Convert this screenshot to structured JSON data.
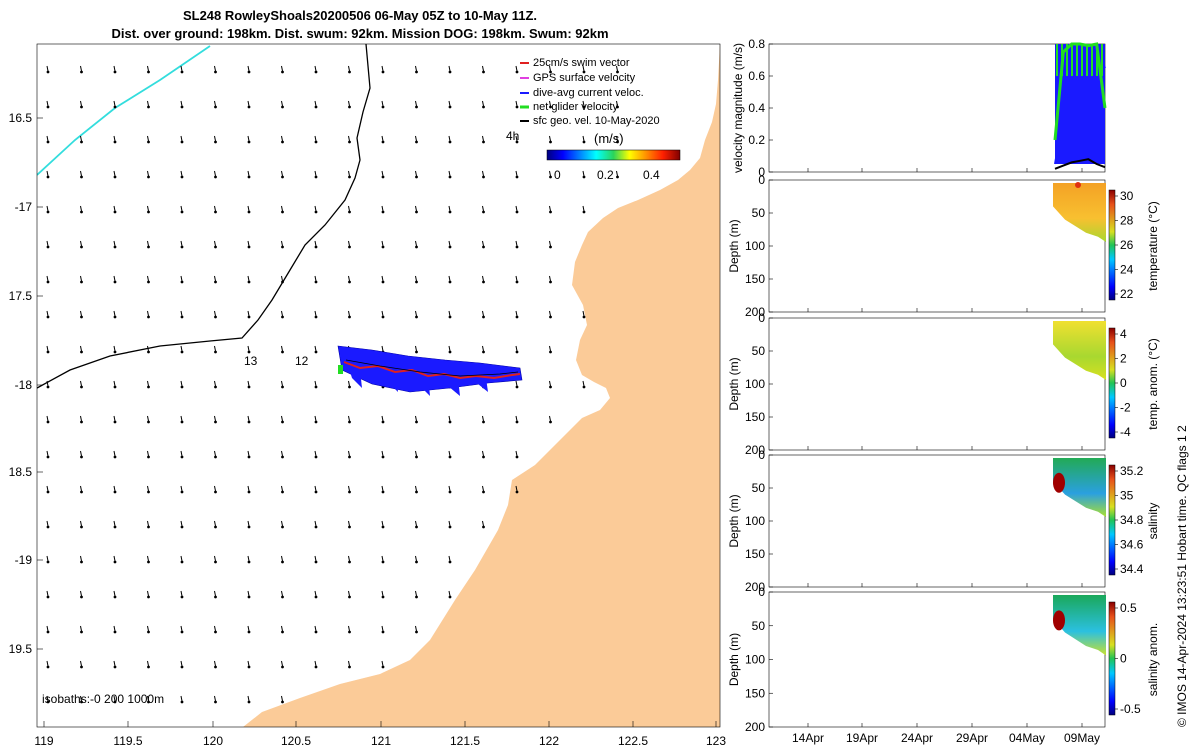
{
  "title": {
    "line1": "SL248 RowleyShoals20200506 06-May 05Z to 10-May 11Z.",
    "line2": "Dist. over ground: 198km. Dist. swum: 92km. Mission DOG: 198km. Swum: 92km"
  },
  "colors": {
    "land": "#fbcb98",
    "swim": "#e02020",
    "gps": "#e040e0",
    "dive": "#1a1aff",
    "net": "#22dd22",
    "sfc": "#000000",
    "track_cyan": "#33dddd"
  },
  "map": {
    "lon_ticks": [
      "119",
      "119.5",
      "120",
      "120.5",
      "121",
      "121.5",
      "122",
      "122.5",
      "123"
    ],
    "lat_ticks": [
      "16.5",
      "-17",
      "17.5",
      "-18",
      "18.5",
      "-19",
      "19.5"
    ],
    "legend": [
      "25cm/s swim vector",
      "GPS surface velocity",
      "dive-avg current veloc.",
      "net glider velocity",
      "sfc geo. vel. 10-May-2020"
    ],
    "time_label": "4h",
    "colorbar_label": "(m/s)",
    "colorbar_ticks": [
      "0",
      "0.2",
      "0.4"
    ],
    "isobath_label": "isobaths:-0   200  1000m",
    "contour_labels": [
      "13",
      "12"
    ]
  },
  "chart_data": [
    {
      "type": "line",
      "title": "",
      "ylabel": "velocity magnitude (m/s)",
      "ylim": [
        0,
        0.8
      ],
      "yticks": [
        "0",
        "0.2",
        "0.4",
        "0.6",
        "0.8"
      ],
      "series": [
        {
          "name": "dive-avg current veloc.",
          "values": [
            0.05,
            0.35,
            0.6,
            0.75,
            0.7,
            0.78,
            0.65
          ]
        },
        {
          "name": "net glider velocity",
          "values": [
            0.2,
            0.75,
            0.8,
            0.8,
            0.79,
            0.8,
            0.4
          ]
        },
        {
          "name": "sfc geo. vel.",
          "values": [
            0.02,
            0.04,
            0.06,
            0.07,
            0.08,
            0.05,
            0.03
          ]
        }
      ]
    },
    {
      "type": "heatmap",
      "ylabel": "Depth (m)",
      "yticks": [
        "0",
        "50",
        "100",
        "150",
        "200"
      ],
      "colorbar_label": "temperature (°C)",
      "colorbar_ticks": [
        "30",
        "28",
        "26",
        "24",
        "22"
      ],
      "clim": [
        21.5,
        31.5
      ]
    },
    {
      "type": "heatmap",
      "ylabel": "Depth (m)",
      "yticks": [
        "0",
        "50",
        "100",
        "150",
        "200"
      ],
      "colorbar_label": "temp. anom. (°C)",
      "colorbar_ticks": [
        "4",
        "2",
        "0",
        "-2",
        "-4"
      ],
      "clim": [
        -4,
        4
      ]
    },
    {
      "type": "heatmap",
      "ylabel": "Depth (m)",
      "yticks": [
        "0",
        "50",
        "100",
        "150",
        "200"
      ],
      "colorbar_label": "salinity",
      "colorbar_ticks": [
        "35.2",
        "35",
        "34.8",
        "34.6",
        "34.4"
      ],
      "clim": [
        34.35,
        35.3
      ]
    },
    {
      "type": "heatmap",
      "ylabel": "Depth (m)",
      "yticks": [
        "0",
        "50",
        "100",
        "150",
        "200"
      ],
      "colorbar_label": "salinity anom.",
      "colorbar_ticks": [
        "0.5",
        "0",
        "-0.5"
      ],
      "clim": [
        -0.5,
        0.5
      ]
    }
  ],
  "x_axis": {
    "ticks": [
      "14Apr",
      "19Apr",
      "24Apr",
      "29Apr",
      "04May",
      "09May"
    ]
  },
  "footer": "© IMOS 14-Apr-2024 13:23:51 Hobart time. QC flags 1  2"
}
